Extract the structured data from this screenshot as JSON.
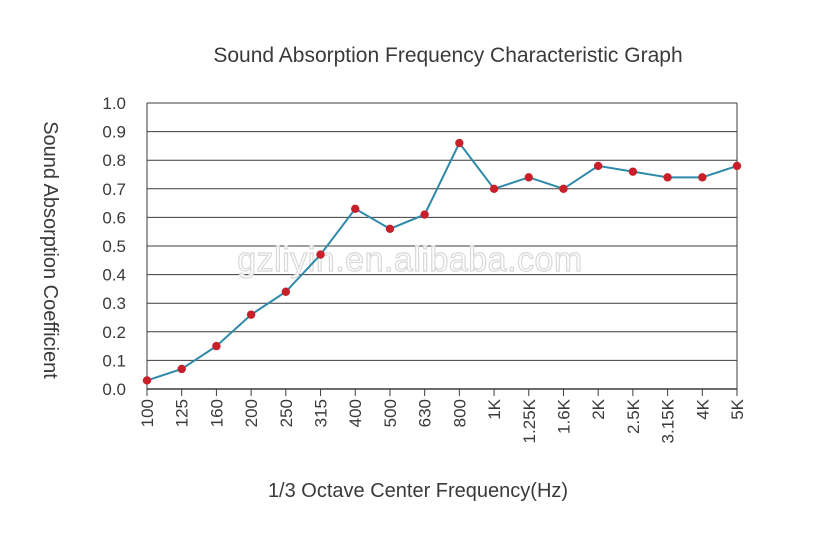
{
  "watermark": "gzliyin.en.alibaba.com",
  "colors": {
    "line": "#2e8aa8",
    "marker": "#c8202a",
    "grid": "#3c3c3c",
    "text": "#3a3a3a"
  },
  "chart_data": {
    "type": "line",
    "title": "Sound Absorption Frequency Characteristic Graph",
    "xlabel": "1/3 Octave Center Frequency(Hz)",
    "ylabel": "Sound Absorption Coefficient",
    "categories": [
      "100",
      "125",
      "160",
      "200",
      "250",
      "315",
      "400",
      "500",
      "630",
      "800",
      "1K",
      "1.25K",
      "1.6K",
      "2K",
      "2.5K",
      "3.15K",
      "4K",
      "5K"
    ],
    "series": [
      {
        "values": [
          0.03,
          0.07,
          0.15,
          0.26,
          0.34,
          0.47,
          0.63,
          0.56,
          0.61,
          0.86,
          0.7,
          0.74,
          0.7,
          0.78,
          0.76,
          0.74,
          0.74,
          0.78
        ]
      }
    ],
    "yticks": [
      "0.0",
      "0.1",
      "0.2",
      "0.3",
      "0.4",
      "0.5",
      "0.6",
      "0.7",
      "0.8",
      "0.9",
      "1.0"
    ],
    "ylim": [
      0,
      1.0
    ],
    "grid": "horizontal",
    "legend": "none"
  }
}
